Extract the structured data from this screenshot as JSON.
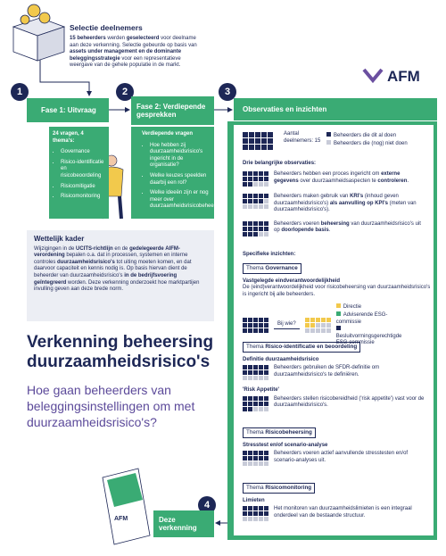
{
  "selection": {
    "title": "Selectie deelnemers",
    "text": [
      {
        "t": "15 beheerders",
        "b": true
      },
      {
        "t": " werden "
      },
      {
        "t": "geselecteerd",
        "b": true
      },
      {
        "t": " voor deelname aan deze verkenning. Selectie gebeurde op basis van "
      },
      {
        "t": "assets under management en de dominante beleggingsstrategie",
        "b": true
      },
      {
        "t": " voor een representatieve weergave van de gehele populatie in de markt."
      }
    ]
  },
  "logo": "AFM",
  "steps": [
    {
      "number": "1",
      "label": "Fase 1: Uitvraag"
    },
    {
      "number": "2",
      "label": "Fase 2: Verdiepende gesprekken"
    },
    {
      "number": "3",
      "label": "Observaties en inzichten"
    },
    {
      "number": "4",
      "label": "Deze verkenning"
    }
  ],
  "phase1": {
    "heading": "24 vragen, 4 thema's:",
    "items": [
      "Governance",
      "Risico-identificatie en risicobeoordeling",
      "Risicomitigatie",
      "Risicomonitoring"
    ]
  },
  "phase2": {
    "heading": "Verdiepende vragen",
    "items": [
      "Hoe hebben zij duurzaamheidsrisico's ingericht in de organisatie?",
      "Welke keuzes speelden daarbij een rol?",
      "Welke ideeën zijn er nog meer over duurzaamheidsrisicobeheersing?"
    ]
  },
  "legal": {
    "title": "Wettelijk kader",
    "text": [
      {
        "t": "Wijzigingen in de "
      },
      {
        "t": "UCITS-richtlijn",
        "b": true
      },
      {
        "t": " en de "
      },
      {
        "t": "gedelegeerde AIFM-verordening",
        "b": true
      },
      {
        "t": " bepalen o.a. dat in processen, systemen en interne controles "
      },
      {
        "t": "duurzaamheidsrisico's",
        "b": true
      },
      {
        "t": " tot uiting moeten komen, en dat daarvoor capaciteit en kennis nodig is. Op basis hiervan dient de beheerder van duurzaamheidsrisico's "
      },
      {
        "t": "in de bedrijfsvoering geïntegreerd",
        "b": true
      },
      {
        "t": " worden. Deze verkenning onderzoekt hoe marktpartijen invulling geven aan deze brede norm."
      }
    ]
  },
  "main_title": "Verkenning beheersing duurzaamheidsrisico's",
  "subtitle": "Hoe gaan beheerders van beleggingsinstellingen om met duurzaamheidsrisico's?",
  "booklet_logo": "AFM",
  "observations": {
    "participants": "Aantal deelnemers: 15",
    "legend": [
      "Beheerders die dit al doen",
      "Beheerders die (nog) niet doen"
    ],
    "key_heading": "Drie belangrijke observaties:",
    "key": [
      [
        {
          "t": "Beheerders hebben een proces ingericht om "
        },
        {
          "t": "externe gegevens",
          "b": true
        },
        {
          "t": " over duurzaamheidsaspecten te "
        },
        {
          "t": "controleren",
          "b": true
        },
        {
          "t": "."
        }
      ],
      [
        {
          "t": "Beheerders maken gebruik van "
        },
        {
          "t": "KRI's",
          "b": true
        },
        {
          "t": " (inhoud geven duurzaamheidsrisico's) "
        },
        {
          "t": "als aanvulling op KPI's",
          "b": true
        },
        {
          "t": " (meten van duurzaamheidsrisico's)."
        }
      ],
      [
        {
          "t": "Beheerders voeren "
        },
        {
          "t": "beheersing",
          "b": true
        },
        {
          "t": " van duurzaamheidsrisico's uit op "
        },
        {
          "t": "doorlopende basis",
          "b": true
        },
        {
          "t": "."
        }
      ]
    ],
    "specific_heading": "Specifieke inzichten:",
    "themes": [
      {
        "label": "Thema",
        "name": "Governance",
        "items": [
          {
            "heading": "Vastgelegde eindverantwoordelijkheid",
            "text": "De (eind)verantwoordelijkheid voor risicobeheersing van duurzaamheidsrisico's is ingericht bij alle beheerders.",
            "diagram": {
              "prompt": "Bij wie?",
              "legend": [
                "Directie",
                "Adviserende ESG-commissie",
                "Besluitvormingsgerechtigde ESG-commissie"
              ]
            }
          }
        ]
      },
      {
        "label": "Thema",
        "name": "Risico-identificatie en beoordeling",
        "items": [
          {
            "heading": "Definitie duurzaamheidsrisico",
            "text": "Beheerders gebruiken de SFDR-definitie om duurzaamheidsrisico's te definiëren."
          },
          {
            "heading": "'Risk Appetite'",
            "text": "Beheerders stellen risicobereidheid ('risk appetite') vast voor de duurzaamheidsrisico's."
          }
        ]
      },
      {
        "label": "Thema",
        "name": "Risicobeheersing",
        "items": [
          {
            "heading": "Stresstest en/of scenario-analyse",
            "text": "Beheerders voeren actief aanvullende stresstesten en/of scenario-analyses uit."
          }
        ]
      },
      {
        "label": "Thema",
        "name": "Risicomonitoring",
        "items": [
          {
            "heading": "Limieten",
            "text": "Het monitoren van duurzaamheidslimieten is een integraal onderdeel van de bestaande structuur."
          }
        ]
      }
    ]
  }
}
